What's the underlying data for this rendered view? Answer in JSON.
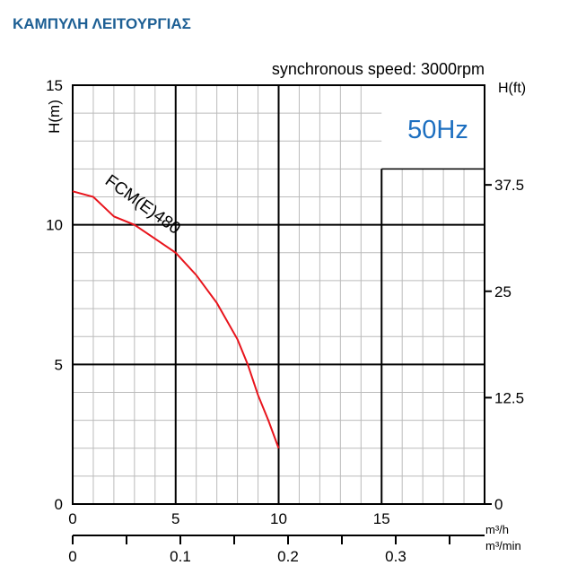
{
  "page_title": "ΚΑΜΠΥΛΗ ΛΕΙΤΟΥΡΓΙΑΣ",
  "chart_data": {
    "type": "line",
    "subtitle": "synchronous speed: 3000rpm",
    "frequency_label": "50Hz",
    "ylabel": "H(m)",
    "ylabel_right": "H(ft)",
    "xlabel": "m³/h",
    "xlabel_secondary": "m³/min",
    "xlim": [
      0,
      20
    ],
    "ylim": [
      0,
      15
    ],
    "x_ticks": [
      "0",
      "5",
      "10",
      "15"
    ],
    "x_ticks_secondary": [
      "0",
      "0.1",
      "0.2",
      "0.3"
    ],
    "y_ticks": [
      "0",
      "5",
      "10",
      "15"
    ],
    "y_ticks_right": [
      "0",
      "12.5",
      "25",
      "37.5"
    ],
    "grid": true,
    "colors": {
      "curve": "#e8141c",
      "frequency_label": "#1d6fc0",
      "title": "#1d5f94"
    },
    "series": [
      {
        "name": "FCM(E)480",
        "x": [
          0,
          1,
          2,
          3,
          4,
          5,
          6,
          7,
          8,
          8.5,
          9,
          9.5,
          10
        ],
        "y": [
          11.2,
          11.0,
          10.3,
          10.0,
          9.5,
          9.0,
          8.2,
          7.2,
          5.9,
          5.0,
          3.9,
          3.0,
          2.0
        ]
      }
    ]
  }
}
